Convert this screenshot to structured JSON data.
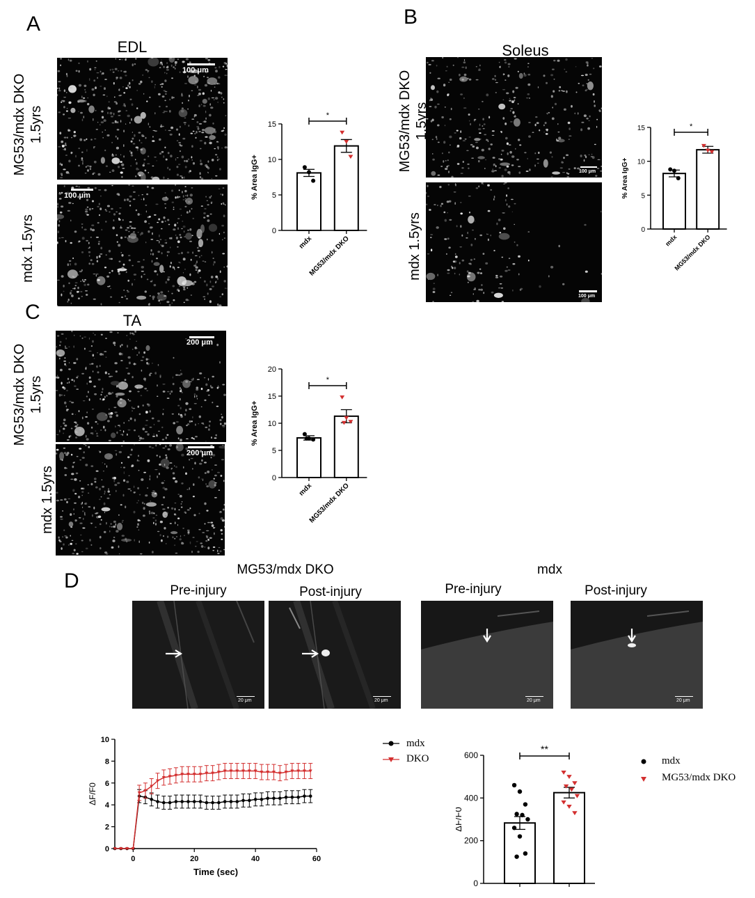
{
  "panels": {
    "A": {
      "letter": "A",
      "muscle": "EDL",
      "rows": [
        {
          "label_line1": "MG53/mdx DKO",
          "label_line2": "1.5yrs",
          "scalebar": "100 μm"
        },
        {
          "label_line1": "mdx 1.5yrs",
          "label_line2": "",
          "scalebar": "100 μm"
        }
      ]
    },
    "B": {
      "letter": "B",
      "muscle": "Soleus",
      "rows": [
        {
          "label_line1": "MG53/mdx DKO",
          "label_line2": "1.5yrs",
          "scalebar": "100 μm"
        },
        {
          "label_line1": "mdx 1.5yrs",
          "label_line2": "",
          "scalebar": "100 μm"
        }
      ]
    },
    "C": {
      "letter": "C",
      "muscle": "TA",
      "rows": [
        {
          "label_line1": "MG53/mdx DKO",
          "label_line2": "1.5yrs",
          "scalebar": "200 μm"
        },
        {
          "label_line1": "mdx 1.5yrs",
          "label_line2": "",
          "scalebar": "200 μm"
        }
      ]
    },
    "D": {
      "letter": "D",
      "group1": "MG53/mdx DKO",
      "group2": "mdx",
      "images": [
        {
          "label": "Pre-injury",
          "scalebar": "20 μm"
        },
        {
          "label": "Post-injury",
          "scalebar": "20 μm"
        },
        {
          "label": "Pre-injury",
          "scalebar": "20 μm"
        },
        {
          "label": "Post-injury",
          "scalebar": "20 μm"
        }
      ]
    }
  },
  "colors": {
    "mdx": "#000000",
    "dko": "#d32f2f"
  },
  "chart_data": [
    {
      "id": "A-bar",
      "type": "bar",
      "categories": [
        "mdx",
        "MG53/mdx DKO"
      ],
      "values": [
        8.1,
        11.9
      ],
      "errors": [
        0.5,
        0.9
      ],
      "points": [
        [
          8.9,
          8.2,
          7.0
        ],
        [
          13.8,
          12.5,
          10.4
        ]
      ],
      "ylabel": "% Area IgG+",
      "ylim": [
        0,
        15
      ],
      "yticks": [
        0,
        5,
        10,
        15
      ],
      "significance": "*"
    },
    {
      "id": "B-bar",
      "type": "bar",
      "categories": [
        "mdx",
        "MG53/mdx DKO"
      ],
      "values": [
        8.2,
        11.7
      ],
      "errors": [
        0.5,
        0.5
      ],
      "points": [
        [
          8.8,
          8.6,
          7.5
        ],
        [
          12.3,
          11.6,
          11.4
        ]
      ],
      "ylabel": "% Area IgG+",
      "ylim": [
        0,
        15
      ],
      "yticks": [
        0,
        5,
        10,
        15
      ],
      "significance": "*"
    },
    {
      "id": "C-bar",
      "type": "bar",
      "categories": [
        "mdx",
        "MG53/mdx DKO"
      ],
      "values": [
        7.3,
        11.3
      ],
      "errors": [
        0.4,
        1.2
      ],
      "points": [
        [
          8.0,
          7.2,
          7.0,
          7.2
        ],
        [
          14.8,
          11.0,
          10.3,
          10.1
        ]
      ],
      "ylabel": "% Area IgG+",
      "ylim": [
        0,
        20
      ],
      "yticks": [
        0,
        5,
        10,
        15,
        20
      ],
      "significance": "*"
    },
    {
      "id": "D-line",
      "type": "line",
      "xlabel": "Time (sec)",
      "ylabel": "ΔF/F0",
      "xlim": [
        -6,
        60
      ],
      "ylim": [
        0,
        10
      ],
      "xticks": [
        0,
        20,
        40,
        60
      ],
      "yticks": [
        0,
        2,
        4,
        6,
        8,
        10
      ],
      "legend": "top-right",
      "series": [
        {
          "name": "mdx",
          "x": [
            -6,
            -4,
            -2,
            0,
            2,
            4,
            6,
            8,
            10,
            12,
            14,
            16,
            18,
            20,
            22,
            24,
            26,
            28,
            30,
            32,
            34,
            36,
            38,
            40,
            42,
            44,
            46,
            48,
            50,
            52,
            54,
            56,
            58
          ],
          "y": [
            0,
            0,
            0,
            0,
            4.8,
            4.7,
            4.5,
            4.3,
            4.2,
            4.2,
            4.3,
            4.3,
            4.3,
            4.3,
            4.3,
            4.2,
            4.2,
            4.2,
            4.3,
            4.3,
            4.3,
            4.4,
            4.4,
            4.5,
            4.5,
            4.6,
            4.6,
            4.6,
            4.7,
            4.7,
            4.7,
            4.8,
            4.8
          ],
          "err": [
            0,
            0,
            0,
            0,
            0.6,
            0.6,
            0.6,
            0.6,
            0.6,
            0.6,
            0.6,
            0.6,
            0.6,
            0.6,
            0.6,
            0.6,
            0.6,
            0.6,
            0.6,
            0.6,
            0.6,
            0.6,
            0.6,
            0.6,
            0.6,
            0.6,
            0.6,
            0.6,
            0.6,
            0.6,
            0.6,
            0.6,
            0.6
          ]
        },
        {
          "name": "DKO",
          "x": [
            -6,
            -4,
            -2,
            0,
            2,
            4,
            6,
            8,
            10,
            12,
            14,
            16,
            18,
            20,
            22,
            24,
            26,
            28,
            30,
            32,
            34,
            36,
            38,
            40,
            42,
            44,
            46,
            48,
            50,
            52,
            54,
            56,
            58
          ],
          "y": [
            0,
            0,
            0,
            0,
            5.1,
            5.3,
            5.7,
            6.2,
            6.5,
            6.6,
            6.7,
            6.8,
            6.8,
            6.8,
            6.8,
            6.9,
            6.9,
            7.0,
            7.1,
            7.1,
            7.1,
            7.1,
            7.1,
            7.1,
            7.0,
            7.0,
            7.0,
            6.9,
            7.0,
            7.1,
            7.1,
            7.1,
            7.1
          ]
        }
      ],
      "err_dko": 0.7
    },
    {
      "id": "D-bar",
      "type": "bar",
      "categories": [
        "mdx",
        "MG53/mdx DKO"
      ],
      "values": [
        283,
        425
      ],
      "errors": [
        30,
        25
      ],
      "points": [
        [
          460,
          430,
          370,
          325,
          320,
          300,
          260,
          220,
          140,
          125
        ],
        [
          520,
          500,
          470,
          455,
          440,
          410,
          380,
          360,
          330
        ]
      ],
      "ylabel": "ΔF/F0",
      "ylim": [
        0,
        600
      ],
      "yticks": [
        0,
        200,
        400,
        600
      ],
      "significance": "**",
      "legend": [
        {
          "name": "mdx",
          "marker": "circle"
        },
        {
          "name": "MG53/mdx DKO",
          "marker": "triangle"
        }
      ]
    }
  ]
}
